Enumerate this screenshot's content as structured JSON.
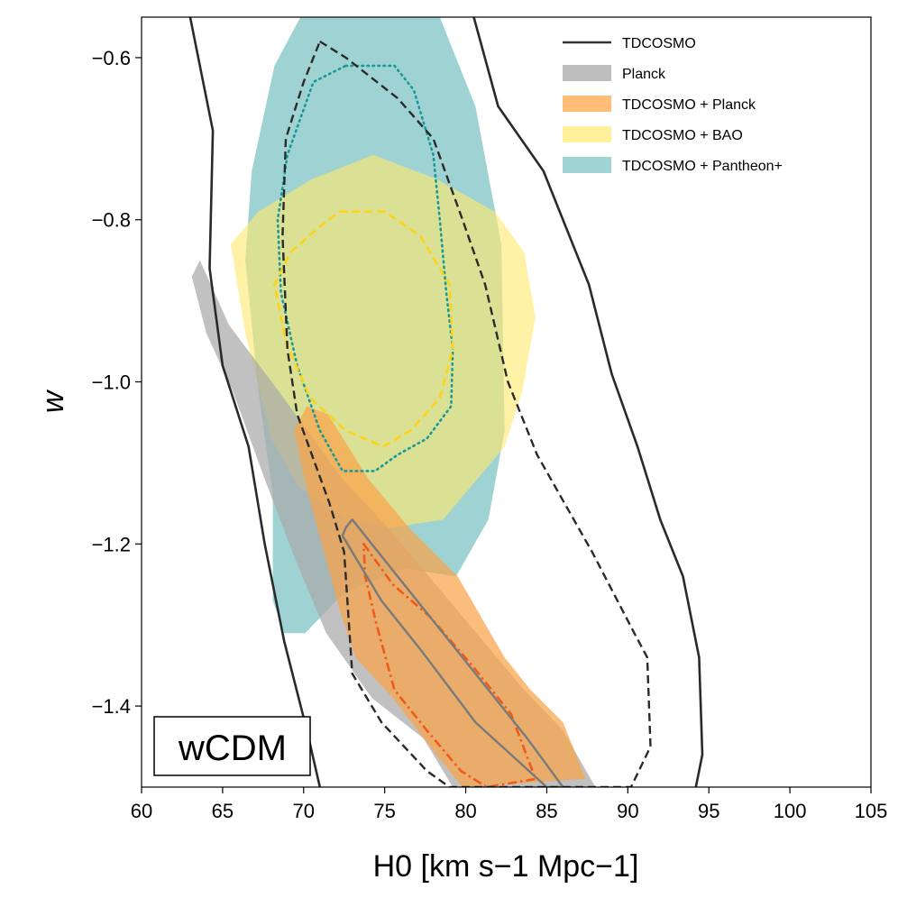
{
  "chart_data": {
    "type": "area",
    "title": "",
    "xlabel": "H0 [km s−1 Mpc−1]",
    "ylabel": "w",
    "xlim": [
      60,
      105
    ],
    "ylim": [
      -1.5,
      -0.55
    ],
    "xticks": [
      60,
      65,
      70,
      75,
      80,
      85,
      90,
      95,
      100,
      105
    ],
    "yticks": [
      -1.4,
      -1.2,
      -1.0,
      -0.8,
      -0.6
    ],
    "ytick_labels": [
      "−1.4",
      "−1.2",
      "−1.0",
      "−0.8",
      "−0.6"
    ],
    "annotation": "wCDM",
    "legend_position": "top-right",
    "legend": [
      {
        "label": "TDCOSMO",
        "kind": "line",
        "color": "#333333"
      },
      {
        "label": "Planck",
        "kind": "patch",
        "color": "#bdbdbd"
      },
      {
        "label": "TDCOSMO + Planck",
        "kind": "patch",
        "color": "#ffbe78"
      },
      {
        "label": "TDCOSMO + BAO",
        "kind": "patch",
        "color": "#fff09a"
      },
      {
        "label": "TDCOSMO + Pantheon+",
        "kind": "patch",
        "color": "#a0d4d4"
      }
    ],
    "series": [
      {
        "name": "TDCOSMO + Pantheon+ (95%)",
        "style": "fill",
        "color": "#7fc4c4",
        "opacity": 0.75,
        "points": [
          [
            69.8,
            -0.55
          ],
          [
            78.4,
            -0.55
          ],
          [
            80.6,
            -0.66
          ],
          [
            82.2,
            -0.83
          ],
          [
            82.3,
            -0.95
          ],
          [
            82.4,
            -1.06
          ],
          [
            81.4,
            -1.17
          ],
          [
            79.4,
            -1.24
          ],
          [
            76.2,
            -1.23
          ],
          [
            72.5,
            -1.26
          ],
          [
            70.1,
            -1.31
          ],
          [
            68.8,
            -1.31
          ],
          [
            68.1,
            -1.27
          ],
          [
            68.1,
            -1.14
          ],
          [
            67.2,
            -1.01
          ],
          [
            66.4,
            -0.85
          ],
          [
            66.8,
            -0.74
          ],
          [
            68.2,
            -0.61
          ]
        ]
      },
      {
        "name": "TDCOSMO + BAO (95%)",
        "style": "fill",
        "color": "#ffe96e",
        "opacity": 0.62,
        "points": [
          [
            70.5,
            -0.75
          ],
          [
            74.3,
            -0.72
          ],
          [
            78.2,
            -0.75
          ],
          [
            81.8,
            -0.79
          ],
          [
            83.6,
            -0.84
          ],
          [
            84.3,
            -0.92
          ],
          [
            83.5,
            -1.01
          ],
          [
            82.4,
            -1.08
          ],
          [
            78.6,
            -1.17
          ],
          [
            75.4,
            -1.18
          ],
          [
            72.7,
            -1.17
          ],
          [
            69.7,
            -1.13
          ],
          [
            68.0,
            -1.07
          ],
          [
            66.4,
            -0.94
          ],
          [
            65.5,
            -0.83
          ],
          [
            67.2,
            -0.79
          ]
        ]
      },
      {
        "name": "Planck (95%)",
        "style": "fill",
        "color": "#a9a9a9",
        "opacity": 0.72,
        "points": [
          [
            63.1,
            -0.87
          ],
          [
            63.6,
            -0.85
          ],
          [
            65.4,
            -0.93
          ],
          [
            68.4,
            -1.01
          ],
          [
            72.4,
            -1.12
          ],
          [
            75.2,
            -1.18
          ],
          [
            79.4,
            -1.28
          ],
          [
            83.6,
            -1.38
          ],
          [
            86.0,
            -1.43
          ],
          [
            88.0,
            -1.5
          ],
          [
            79.2,
            -1.5
          ],
          [
            77.4,
            -1.44
          ],
          [
            74.2,
            -1.39
          ],
          [
            71.4,
            -1.31
          ],
          [
            69.5,
            -1.22
          ],
          [
            67.6,
            -1.12
          ],
          [
            65.6,
            -1.01
          ],
          [
            64.0,
            -0.94
          ]
        ]
      },
      {
        "name": "TDCOSMO + Planck (95%)",
        "style": "fill",
        "color": "#f8a34a",
        "opacity": 0.72,
        "points": [
          [
            70.2,
            -1.03
          ],
          [
            71.5,
            -1.04
          ],
          [
            74.0,
            -1.12
          ],
          [
            76.5,
            -1.18
          ],
          [
            79.5,
            -1.24
          ],
          [
            82.4,
            -1.34
          ],
          [
            84.0,
            -1.38
          ],
          [
            86.0,
            -1.42
          ],
          [
            87.4,
            -1.49
          ],
          [
            79.8,
            -1.5
          ],
          [
            77.8,
            -1.45
          ],
          [
            75.5,
            -1.39
          ],
          [
            73.2,
            -1.34
          ],
          [
            72.2,
            -1.28
          ],
          [
            71.4,
            -1.22
          ],
          [
            70.3,
            -1.14
          ],
          [
            69.4,
            -1.06
          ]
        ]
      },
      {
        "name": "TDCOSMO + Pantheon+ (68%)",
        "style": "dotted",
        "color": "#1a9898",
        "width": 2.6,
        "points": [
          [
            72.6,
            -0.61
          ],
          [
            75.6,
            -0.61
          ],
          [
            76.8,
            -0.64
          ],
          [
            78.0,
            -0.72
          ],
          [
            78.4,
            -0.8
          ],
          [
            78.8,
            -0.89
          ],
          [
            79.2,
            -0.96
          ],
          [
            79.1,
            -1.03
          ],
          [
            77.6,
            -1.07
          ],
          [
            75.8,
            -1.09
          ],
          [
            74.4,
            -1.11
          ],
          [
            72.4,
            -1.11
          ],
          [
            71.0,
            -1.06
          ],
          [
            69.6,
            -0.98
          ],
          [
            68.6,
            -0.89
          ],
          [
            68.4,
            -0.8
          ],
          [
            69.0,
            -0.72
          ],
          [
            70.6,
            -0.63
          ]
        ]
      },
      {
        "name": "TDCOSMO + BAO (68%)",
        "style": "dashed",
        "color": "#ffd21a",
        "width": 2.6,
        "points": [
          [
            72.2,
            -0.79
          ],
          [
            75.0,
            -0.79
          ],
          [
            77.2,
            -0.82
          ],
          [
            79.0,
            -0.88
          ],
          [
            79.2,
            -0.96
          ],
          [
            78.4,
            -1.02
          ],
          [
            76.6,
            -1.06
          ],
          [
            74.9,
            -1.08
          ],
          [
            72.6,
            -1.06
          ],
          [
            70.4,
            -1.02
          ],
          [
            68.9,
            -0.95
          ],
          [
            68.2,
            -0.88
          ],
          [
            69.2,
            -0.84
          ],
          [
            70.9,
            -0.81
          ]
        ]
      },
      {
        "name": "TDCOSMO + Planck (68%)",
        "style": "dashdot",
        "color": "#f05a1a",
        "width": 2.6,
        "points": [
          [
            73.7,
            -1.2
          ],
          [
            75.5,
            -1.25
          ],
          [
            77.8,
            -1.29
          ],
          [
            80.4,
            -1.35
          ],
          [
            82.8,
            -1.41
          ],
          [
            84.3,
            -1.49
          ],
          [
            81.3,
            -1.5
          ],
          [
            79.7,
            -1.48
          ],
          [
            77.6,
            -1.43
          ],
          [
            75.6,
            -1.38
          ],
          [
            74.5,
            -1.3
          ],
          [
            73.8,
            -1.24
          ]
        ]
      },
      {
        "name": "Planck (68%)",
        "style": "solid",
        "color": "#7a7a7a",
        "width": 2.4,
        "points": [
          [
            72.6,
            -1.18
          ],
          [
            73.0,
            -1.17
          ],
          [
            76.6,
            -1.26
          ],
          [
            80.6,
            -1.36
          ],
          [
            83.8,
            -1.44
          ],
          [
            86.0,
            -1.5
          ],
          [
            85.0,
            -1.5
          ],
          [
            80.6,
            -1.42
          ],
          [
            77.2,
            -1.33
          ],
          [
            74.8,
            -1.27
          ],
          [
            72.4,
            -1.19
          ]
        ]
      },
      {
        "name": "TDCOSMO (68%)",
        "style": "dashed",
        "color": "#2a2a2a",
        "width": 2.4,
        "points": [
          [
            71.0,
            -0.58
          ],
          [
            72.6,
            -0.6
          ],
          [
            75.8,
            -0.65
          ],
          [
            78.0,
            -0.7
          ],
          [
            79.8,
            -0.8
          ],
          [
            81.2,
            -0.88
          ],
          [
            82.6,
            -1.0
          ],
          [
            84.4,
            -1.09
          ],
          [
            87.8,
            -1.21
          ],
          [
            90.4,
            -1.31
          ],
          [
            91.2,
            -1.34
          ],
          [
            91.4,
            -1.45
          ],
          [
            90.2,
            -1.5
          ],
          [
            79.0,
            -1.5
          ],
          [
            77.6,
            -1.48
          ],
          [
            74.8,
            -1.42
          ],
          [
            73.0,
            -1.36
          ],
          [
            72.5,
            -1.21
          ],
          [
            71.6,
            -1.15
          ],
          [
            69.6,
            -1.04
          ],
          [
            69.0,
            -0.96
          ],
          [
            68.7,
            -0.82
          ],
          [
            68.9,
            -0.7
          ],
          [
            70.0,
            -0.63
          ]
        ]
      },
      {
        "name": "TDCOSMO (95%)",
        "style": "solid-open",
        "color": "#2a2a2a",
        "width": 2.6,
        "left": [
          [
            63.0,
            -0.55
          ],
          [
            64.4,
            -0.69
          ],
          [
            64.2,
            -0.86
          ],
          [
            65.0,
            -0.98
          ],
          [
            66.6,
            -1.08
          ],
          [
            67.6,
            -1.2
          ],
          [
            68.8,
            -1.32
          ],
          [
            70.2,
            -1.43
          ],
          [
            71.0,
            -1.5
          ]
        ],
        "right": [
          [
            80.5,
            -0.55
          ],
          [
            82.0,
            -0.66
          ],
          [
            84.8,
            -0.74
          ],
          [
            87.6,
            -0.88
          ],
          [
            89.0,
            -0.99
          ],
          [
            90.6,
            -1.08
          ],
          [
            92.0,
            -1.17
          ],
          [
            93.4,
            -1.24
          ],
          [
            94.4,
            -1.34
          ],
          [
            94.6,
            -1.46
          ],
          [
            94.2,
            -1.5
          ]
        ]
      }
    ]
  }
}
